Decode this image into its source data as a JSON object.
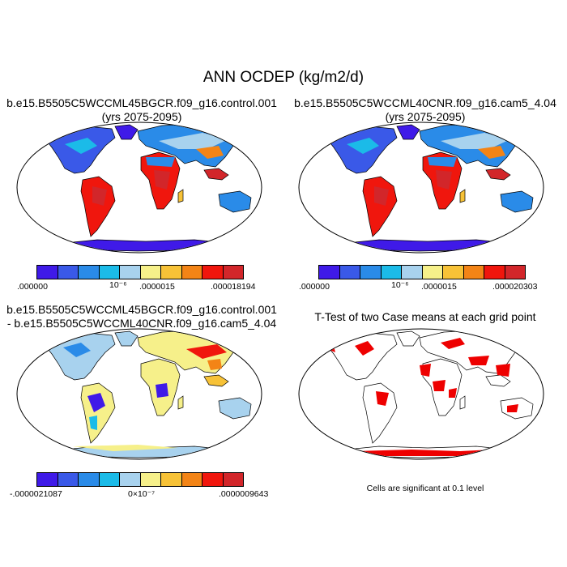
{
  "title": "ANN OCDEP (kg/m2/d)",
  "panels": {
    "a": {
      "title": "b.e15.B5505C5WCCML45BGCR.f09_g16.control.001",
      "years": "(yrs 2075-2095)",
      "colorbar_labels": [
        ".000000",
        "10⁻⁶",
        ".0000015",
        ".000018194"
      ]
    },
    "b": {
      "title": "b.e15.B5505C5WCCML40CNR.f09_g16.cam5_4.04",
      "years": "(yrs 2075-2095)",
      "colorbar_labels": [
        ".000000",
        "10⁻⁶",
        ".0000015",
        ".000020303"
      ]
    },
    "c": {
      "title_line1": "b.e15.B5505C5WCCML45BGCR.f09_g16.control.001",
      "title_line2": "- b.e15.B5505C5WCCML40CNR.f09_g16.cam5_4.04",
      "colorbar_labels": [
        "-.0000021087",
        "0×10⁻⁷",
        ".0000009643"
      ]
    },
    "d": {
      "title": "T-Test of two Case means at each grid point",
      "note": "Cells are significant at 0.1 level"
    }
  },
  "colors": {
    "sequential": [
      "#3f1ae8",
      "#3a59e8",
      "#2a8be8",
      "#1bbbe8",
      "#a8d2ee",
      "#f6f08a",
      "#f7c237",
      "#f38416",
      "#f0160d",
      "#d2262a"
    ],
    "diverging": [
      "#3f1ae8",
      "#3a59e8",
      "#2a8be8",
      "#1bbbe8",
      "#a8d2ee",
      "#f6f08a",
      "#f7c237",
      "#f38416",
      "#f0160d",
      "#d2262a"
    ],
    "significance": "#ee0000",
    "ocean": "#ffffff"
  }
}
